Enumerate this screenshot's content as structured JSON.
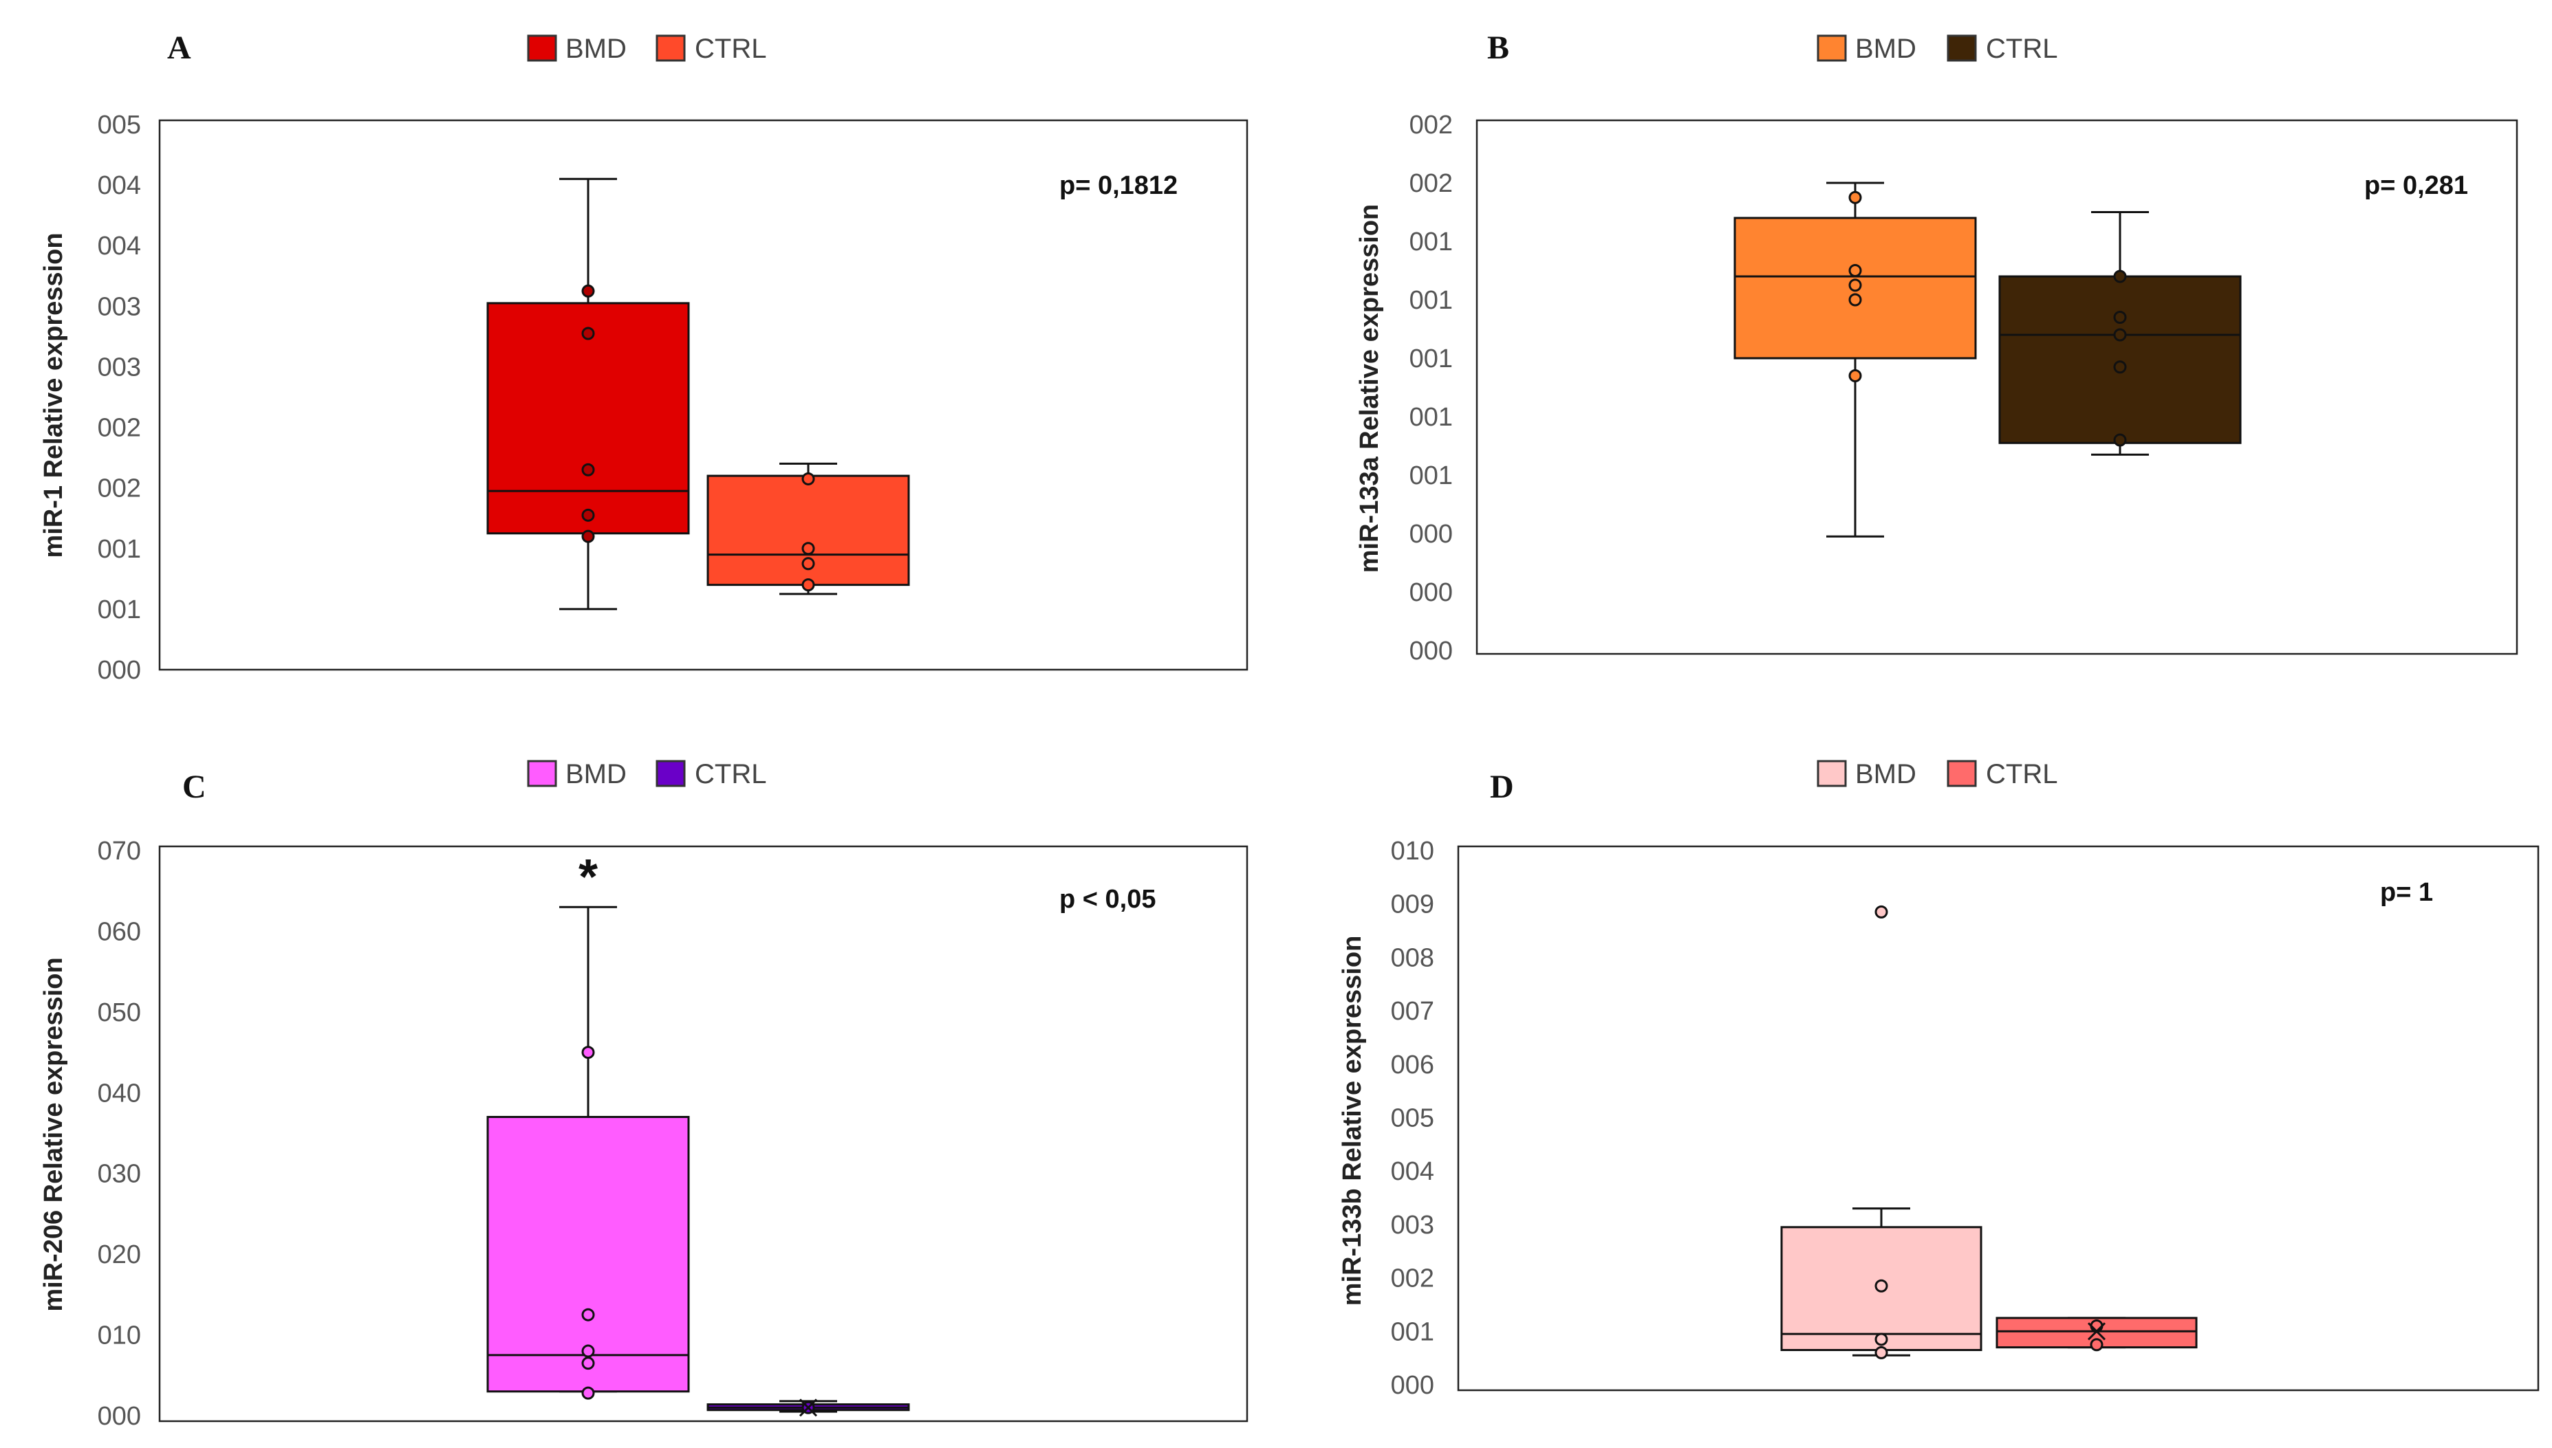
{
  "chart_data": [
    {
      "panel": "A",
      "type": "box",
      "ylabel": "miR-1 Relative expression",
      "yticks": [
        "000",
        "001",
        "001",
        "002",
        "002",
        "003",
        "003",
        "004",
        "004",
        "005"
      ],
      "ylim": [
        0,
        9
      ],
      "legend": [
        "BMD",
        "CTRL"
      ],
      "p_value": "p= 0,1812",
      "annotation": "",
      "series": [
        {
          "name": "BMD",
          "color": "#e00000",
          "dot": "#b00000",
          "whisker_low": 1.0,
          "q1": 2.25,
          "median": 2.95,
          "q3": 6.05,
          "whisker_high": 8.1,
          "points": [
            6.25,
            5.55,
            3.3,
            2.55,
            2.2
          ]
        },
        {
          "name": "CTRL",
          "color": "#ff4a2a",
          "dot": "#ff4a2a",
          "whisker_low": 1.25,
          "q1": 1.4,
          "median": 1.9,
          "q3": 3.2,
          "whisker_high": 3.4,
          "points": [
            3.15,
            2.0,
            1.75,
            1.4
          ]
        }
      ]
    },
    {
      "panel": "B",
      "type": "box",
      "ylabel": "miR-133a Relative expression",
      "yticks": [
        "000",
        "000",
        "000",
        "001",
        "001",
        "001",
        "001",
        "001",
        "002",
        "002"
      ],
      "ylim": [
        0,
        9
      ],
      "legend": [
        "BMD",
        "CTRL"
      ],
      "p_value": "p= 0,281",
      "annotation": "",
      "series": [
        {
          "name": "BMD",
          "color": "#ff8430",
          "dot": "#ff8430",
          "whisker_low": 1.95,
          "q1": 5.0,
          "median": 6.4,
          "q3": 7.4,
          "whisker_high": 8.0,
          "points": [
            7.75,
            6.5,
            6.25,
            6.0,
            4.7
          ]
        },
        {
          "name": "CTRL",
          "color": "#3f2507",
          "dot": "#3f2507",
          "whisker_low": 3.35,
          "q1": 3.55,
          "median": 5.4,
          "q3": 6.4,
          "whisker_high": 7.5,
          "points": [
            6.4,
            5.7,
            5.4,
            4.85,
            3.6
          ]
        }
      ]
    },
    {
      "panel": "C",
      "type": "box",
      "ylabel": "miR-206 Relative expression",
      "yticks": [
        "000",
        "010",
        "020",
        "030",
        "040",
        "050",
        "060",
        "070"
      ],
      "ylim": [
        0,
        7
      ],
      "legend": [
        "BMD",
        "CTRL"
      ],
      "p_value": "p < 0,05",
      "annotation": "*",
      "series": [
        {
          "name": "BMD",
          "color": "#ff5cff",
          "dot": "#ff5cff",
          "whisker_low": 0.3,
          "q1": 0.3,
          "median": 0.75,
          "q3": 3.7,
          "whisker_high": 6.3,
          "points": [
            4.5,
            1.25,
            0.8,
            0.65,
            0.28
          ]
        },
        {
          "name": "CTRL",
          "color": "#6a00c8",
          "dot": "#6a00c8",
          "whisker_low": 0.05,
          "q1": 0.07,
          "median": 0.1,
          "q3": 0.14,
          "whisker_high": 0.18,
          "points": [
            0.1
          ],
          "mean": 0.1
        }
      ]
    },
    {
      "panel": "D",
      "type": "box",
      "ylabel": "miR-133b Relative expression",
      "yticks": [
        "000",
        "001",
        "002",
        "003",
        "004",
        "005",
        "006",
        "007",
        "008",
        "009",
        "010"
      ],
      "ylim": [
        0,
        10
      ],
      "legend": [
        "BMD",
        "CTRL"
      ],
      "p_value": "p= 1",
      "annotation": "",
      "series": [
        {
          "name": "BMD",
          "color": "#ffc8c8",
          "dot": "#ffc8c8",
          "whisker_low": 0.55,
          "q1": 0.65,
          "median": 0.95,
          "q3": 2.95,
          "whisker_high": 3.3,
          "points": [
            8.85,
            1.85,
            0.85,
            0.6
          ]
        },
        {
          "name": "CTRL",
          "color": "#ff6b6b",
          "dot": "#ff6b6b",
          "whisker_low": 0.7,
          "q1": 0.7,
          "median": 1.0,
          "q3": 1.25,
          "whisker_high": 1.25,
          "points": [
            0.75,
            1.1
          ],
          "mean": 1.0
        }
      ]
    }
  ]
}
